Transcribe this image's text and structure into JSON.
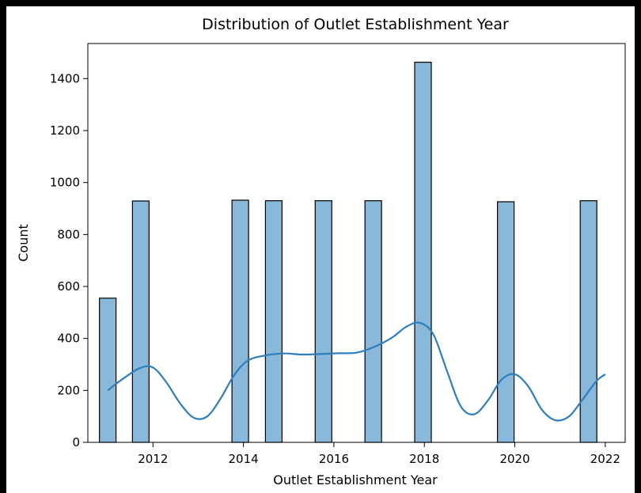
{
  "chart_data": {
    "type": "bar",
    "title": "Distribution of Outlet Establishment Year",
    "xlabel": "Outlet Establishment Year",
    "ylabel": "Count",
    "xlim": [
      2010.56,
      2022.44
    ],
    "ylim": [
      0,
      1535
    ],
    "xticks": [
      2012,
      2014,
      2016,
      2018,
      2020,
      2022
    ],
    "yticks": [
      0,
      200,
      400,
      600,
      800,
      1000,
      1200,
      1400
    ],
    "bar_width": 0.367,
    "bars": [
      {
        "x": 2011.0,
        "value": 555
      },
      {
        "x": 2011.73,
        "value": 929
      },
      {
        "x": 2013.93,
        "value": 932
      },
      {
        "x": 2014.67,
        "value": 930
      },
      {
        "x": 2015.77,
        "value": 930
      },
      {
        "x": 2016.87,
        "value": 930
      },
      {
        "x": 2017.97,
        "value": 1463
      },
      {
        "x": 2019.8,
        "value": 926
      },
      {
        "x": 2021.63,
        "value": 930
      }
    ],
    "kde": {
      "x": [
        2011.0,
        2011.3,
        2011.7,
        2012.0,
        2012.3,
        2012.6,
        2012.9,
        2013.2,
        2013.5,
        2013.8,
        2014.1,
        2014.5,
        2014.9,
        2015.3,
        2015.7,
        2016.1,
        2016.5,
        2016.9,
        2017.3,
        2017.6,
        2017.9,
        2018.2,
        2018.5,
        2018.8,
        2019.1,
        2019.4,
        2019.7,
        2020.0,
        2020.3,
        2020.6,
        2020.9,
        2021.2,
        2021.5,
        2021.8,
        2022.0
      ],
      "y": [
        200,
        240,
        285,
        288,
        230,
        150,
        95,
        100,
        170,
        260,
        315,
        335,
        342,
        338,
        340,
        343,
        345,
        368,
        405,
        445,
        460,
        415,
        275,
        140,
        108,
        160,
        240,
        262,
        215,
        125,
        85,
        100,
        165,
        235,
        262
      ]
    },
    "colors": {
      "bar_fill": "#8ab8da",
      "bar_edge": "#000000",
      "kde_line": "#2e7ebc"
    },
    "grid": false
  }
}
